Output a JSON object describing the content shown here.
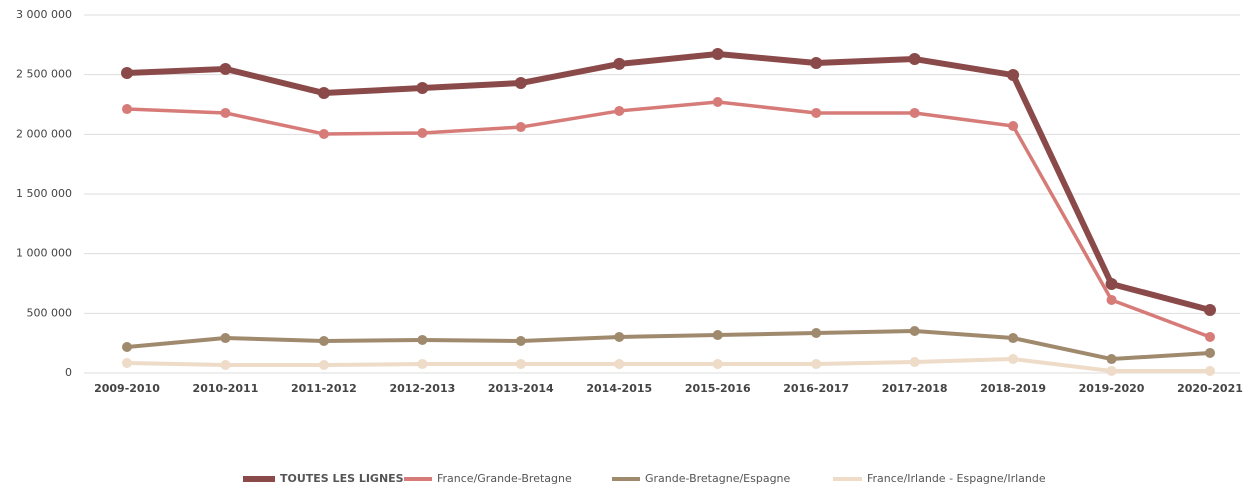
{
  "chart_data": {
    "type": "line",
    "categories": [
      "2009-2010",
      "2010-2011",
      "2011-2012",
      "2012-2013",
      "2013-2014",
      "2014-2015",
      "2015-2016",
      "2016-2017",
      "2017-2018",
      "2018-2019",
      "2019-2020",
      "2020-2021"
    ],
    "series": [
      {
        "name": "TOUTES LES LIGNES",
        "color": "#8b4a4a",
        "values": [
          2514000,
          2548000,
          2346000,
          2388000,
          2430000,
          2590000,
          2673000,
          2598000,
          2631000,
          2497000,
          746000,
          528000
        ]
      },
      {
        "name": "France/Grande-Bretagne",
        "color": "#d67b78",
        "values": [
          2212000,
          2179000,
          2003000,
          2011000,
          2061000,
          2196000,
          2271000,
          2179000,
          2179000,
          2070000,
          612000,
          302000
        ]
      },
      {
        "name": "Grande-Bretagne/Espagne",
        "color": "#a08a6e",
        "values": [
          218000,
          293000,
          268000,
          277000,
          268000,
          302000,
          318000,
          335000,
          352000,
          293000,
          117000,
          168000
        ]
      },
      {
        "name": "France/Irlande - Espagne/Irlande",
        "color": "#eedbc8",
        "values": [
          84000,
          67000,
          67000,
          75000,
          75000,
          75000,
          75000,
          75000,
          92000,
          117000,
          17000,
          17000
        ]
      }
    ],
    "ylim": [
      0,
      3000000
    ],
    "yticks": [
      0,
      {
        "value": 500000,
        "label": "500 000"
      },
      {
        "value": 1000000,
        "label": "1 000 000"
      },
      {
        "value": 1500000,
        "label": "1 500 000"
      },
      {
        "value": 2000000,
        "label": "2 000 000"
      },
      {
        "value": 2500000,
        "label": "2 500 000"
      },
      {
        "value": 3000000,
        "label": "3 000 000"
      }
    ],
    "grid": true,
    "legend": "bottom"
  }
}
